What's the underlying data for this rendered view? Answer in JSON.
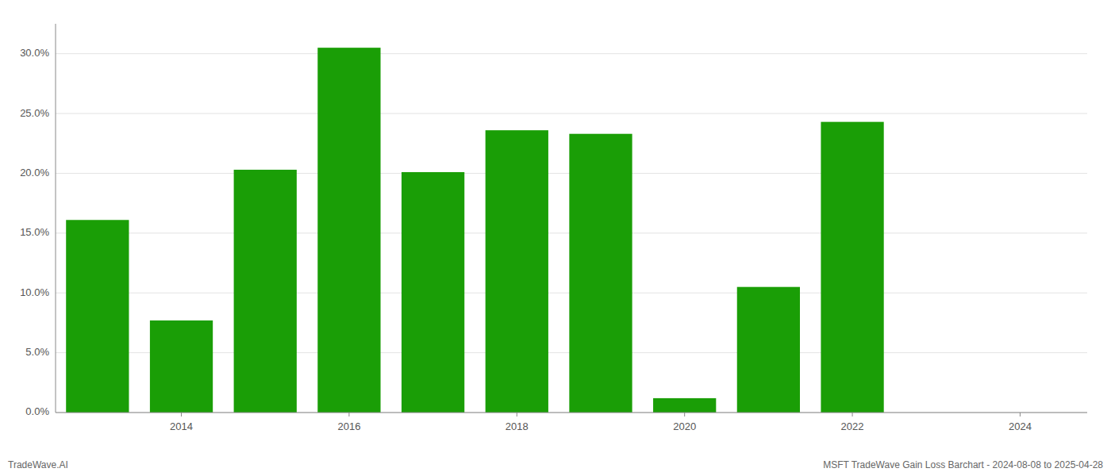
{
  "chart_data": {
    "type": "bar",
    "x": [
      2013,
      2014,
      2015,
      2016,
      2017,
      2018,
      2019,
      2020,
      2021,
      2022,
      2023
    ],
    "values": [
      0.161,
      0.077,
      0.203,
      0.305,
      0.201,
      0.236,
      0.233,
      0.012,
      0.105,
      0.243,
      0.0
    ],
    "color": "#1a9e06",
    "xlim": [
      2012.5,
      2024.8
    ],
    "xticks": [
      2014,
      2016,
      2018,
      2020,
      2022,
      2024
    ],
    "ylim": [
      0,
      0.325
    ],
    "yticks": [
      {
        "value": 0.0,
        "label": "0.0%"
      },
      {
        "value": 0.05,
        "label": "5.0%"
      },
      {
        "value": 0.1,
        "label": "10.0%"
      },
      {
        "value": 0.15,
        "label": "15.0%"
      },
      {
        "value": 0.2,
        "label": "20.0%"
      },
      {
        "value": 0.25,
        "label": "25.0%"
      },
      {
        "value": 0.3,
        "label": "30.0%"
      }
    ],
    "grid": true,
    "annotations": [
      "TradeWave.AI",
      "MSFT TradeWave Gain Loss Barchart - 2024-08-08 to 2025-04-28"
    ]
  }
}
